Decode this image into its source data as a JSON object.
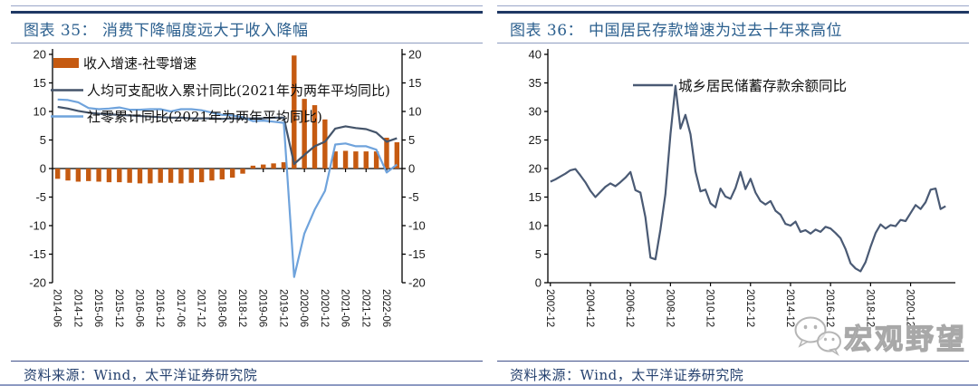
{
  "panels": [
    {
      "figure_label": "图表 35：",
      "title": "消费下降幅度远大于收入降幅",
      "source": "资料来源：Wind，太平洋证券研究院"
    },
    {
      "figure_label": "图表 36：",
      "title": "中国居民存款增速为过去十年来高位",
      "source": "资料来源：Wind，太平洋证券研究院"
    }
  ],
  "watermark": {
    "icon": "wechat-icon",
    "text": "宏观野望",
    "color": "#b5b5b5"
  },
  "colors": {
    "rule_navy": "#1F3864",
    "rule_light": "#9aa6c8",
    "title_blue": "#2B5F8E",
    "bar_orange": "#C55A11",
    "income_line": "#44546A",
    "retail_line": "#6FA3DC",
    "deposit_line": "#4A5A74"
  },
  "chart_data": [
    {
      "type": "bar",
      "title": "消费下降幅度远大于收入降幅",
      "xlabel": "",
      "ylabel": "",
      "ylim": [
        -20,
        20
      ],
      "ytick_step": 5,
      "dual_axis": true,
      "grid": false,
      "legend_position": "top-left",
      "xtick_every": 2,
      "categories": [
        "2014-06",
        "2014-09",
        "2014-12",
        "2015-03",
        "2015-06",
        "2015-09",
        "2015-12",
        "2016-03",
        "2016-06",
        "2016-09",
        "2016-12",
        "2017-03",
        "2017-06",
        "2017-09",
        "2017-12",
        "2018-03",
        "2018-06",
        "2018-09",
        "2018-12",
        "2019-03",
        "2019-06",
        "2019-09",
        "2019-12",
        "2020-03",
        "2020-06",
        "2020-09",
        "2020-12",
        "2021-03",
        "2021-06",
        "2021-09",
        "2021-12",
        "2022-03",
        "2022-06",
        "2022-09"
      ],
      "series": [
        {
          "name": "收入增速-社零增速",
          "kind": "bar",
          "color": "#C55A11",
          "values": [
            -1.8,
            -2.1,
            -2.3,
            -2.2,
            -2.3,
            -2.4,
            -2.4,
            -2.5,
            -2.6,
            -2.6,
            -2.5,
            -2.5,
            -2.6,
            -2.5,
            -2.4,
            -2.1,
            -1.9,
            -1.6,
            -0.9,
            0.5,
            0.7,
            0.9,
            1.1,
            19.8,
            12.2,
            11.1,
            8.6,
            3.0,
            3.1,
            3.0,
            3.0,
            3.0,
            5.4,
            4.6
          ]
        },
        {
          "name": "人均可支配收入累计同比(2021年为两年平均同比)",
          "kind": "line",
          "color": "#44546A",
          "values": [
            10.8,
            10.5,
            10.1,
            9.8,
            9.6,
            9.5,
            9.4,
            9.3,
            9.2,
            9.1,
            9.0,
            8.9,
            8.9,
            8.8,
            8.8,
            8.8,
            8.7,
            8.8,
            8.7,
            8.8,
            8.8,
            8.9,
            8.9,
            0.8,
            2.4,
            3.9,
            4.7,
            7.0,
            7.4,
            7.1,
            6.9,
            6.3,
            4.7,
            5.3
          ]
        },
        {
          "name": "社零累计同比(2021年为两年平均同比)",
          "kind": "line",
          "color": "#6FA3DC",
          "values": [
            12.1,
            12.0,
            11.6,
            10.6,
            10.4,
            10.5,
            10.7,
            10.3,
            10.3,
            10.4,
            10.4,
            10.0,
            10.4,
            10.4,
            10.2,
            9.8,
            9.4,
            9.3,
            9.0,
            8.3,
            8.4,
            8.2,
            8.0,
            -19.0,
            -11.4,
            -7.2,
            -3.9,
            4.2,
            4.4,
            3.9,
            3.9,
            3.3,
            -0.7,
            0.7
          ]
        }
      ]
    },
    {
      "type": "line",
      "title": "中国居民存款增速为过去十年来高位",
      "xlabel": "",
      "ylabel": "",
      "ylim": [
        0,
        40
      ],
      "ytick_step": 5,
      "dual_axis": false,
      "grid": false,
      "legend_position": "top-center",
      "xtick_every": 8,
      "legend": "城乡居民储蓄存款余额同比",
      "color": "#4A5A74",
      "x": [
        "2002-12",
        "2003-03",
        "2003-06",
        "2003-09",
        "2003-12",
        "2004-03",
        "2004-06",
        "2004-09",
        "2004-12",
        "2005-03",
        "2005-06",
        "2005-09",
        "2005-12",
        "2006-03",
        "2006-06",
        "2006-09",
        "2006-12",
        "2007-03",
        "2007-06",
        "2007-09",
        "2007-12",
        "2008-03",
        "2008-06",
        "2008-09",
        "2008-12",
        "2009-03",
        "2009-06",
        "2009-09",
        "2009-12",
        "2010-03",
        "2010-06",
        "2010-09",
        "2010-12",
        "2011-03",
        "2011-06",
        "2011-09",
        "2011-12",
        "2012-03",
        "2012-06",
        "2012-09",
        "2012-12",
        "2013-03",
        "2013-06",
        "2013-09",
        "2013-12",
        "2014-03",
        "2014-06",
        "2014-09",
        "2014-12",
        "2015-03",
        "2015-06",
        "2015-09",
        "2015-12",
        "2016-03",
        "2016-06",
        "2016-09",
        "2016-12",
        "2017-03",
        "2017-06",
        "2017-09",
        "2017-12",
        "2018-03",
        "2018-06",
        "2018-09",
        "2018-12",
        "2019-03",
        "2019-06",
        "2019-09",
        "2019-12",
        "2020-03",
        "2020-06",
        "2020-09",
        "2020-12",
        "2021-03",
        "2021-06",
        "2021-09",
        "2021-12",
        "2022-03",
        "2022-06",
        "2022-09"
      ],
      "values": [
        17.7,
        18.1,
        18.6,
        19.1,
        19.7,
        19.9,
        18.8,
        17.6,
        16.1,
        15.0,
        15.9,
        16.8,
        17.4,
        16.9,
        17.6,
        18.4,
        19.4,
        16.2,
        15.8,
        11.5,
        4.4,
        4.1,
        9.3,
        15.5,
        26.0,
        34.5,
        27.0,
        29.4,
        26.0,
        19.5,
        16.0,
        16.3,
        13.9,
        13.2,
        16.5,
        15.1,
        14.7,
        16.6,
        19.4,
        16.4,
        18.2,
        15.8,
        14.3,
        13.7,
        14.3,
        12.6,
        11.9,
        10.3,
        10.0,
        10.7,
        8.9,
        9.2,
        8.6,
        9.3,
        8.9,
        9.8,
        9.5,
        8.7,
        7.8,
        5.9,
        3.4,
        2.5,
        2.0,
        3.6,
        6.3,
        8.7,
        10.2,
        9.5,
        10.1,
        9.9,
        11.0,
        10.8,
        12.2,
        13.6,
        12.9,
        14.1,
        16.3,
        16.5,
        12.9,
        13.4
      ]
    }
  ]
}
